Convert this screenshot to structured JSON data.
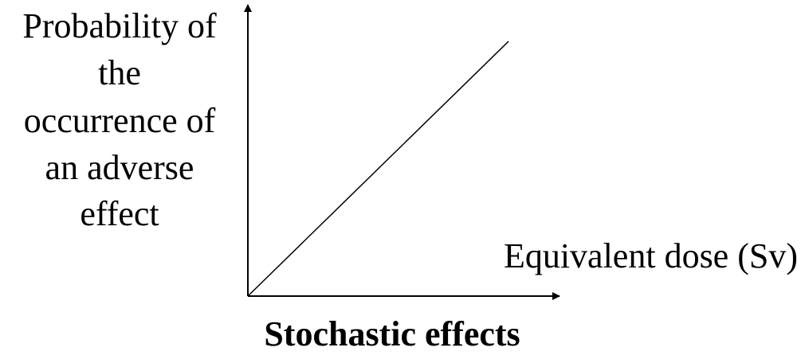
{
  "y_axis_label": [
    "Probability of",
    "the",
    "occurrence of",
    "an adverse",
    "effect"
  ],
  "x_axis_label": "Equivalent dose (Sv)",
  "caption": "Stochastic effects"
}
